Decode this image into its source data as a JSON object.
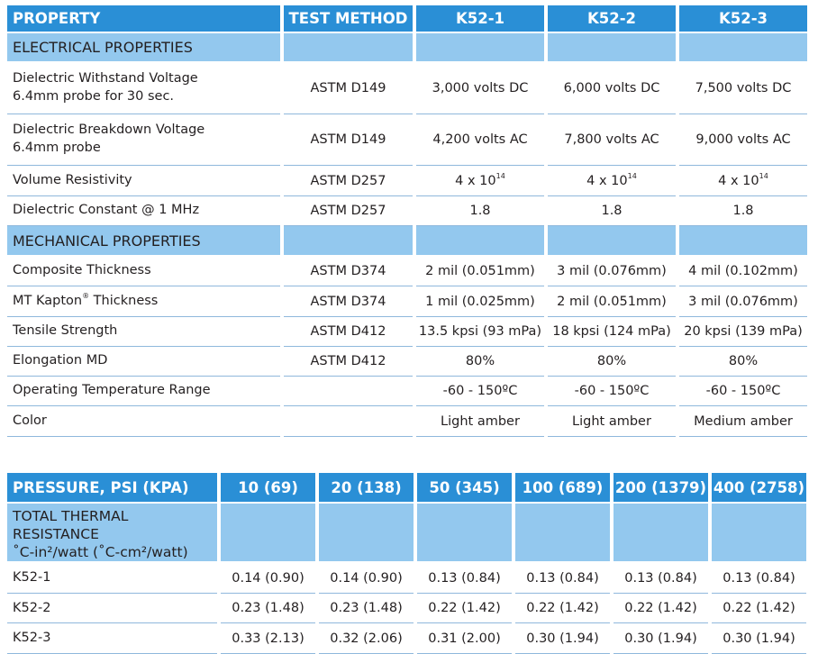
{
  "properties_table": {
    "headers": [
      "PROPERTY",
      "TEST METHOD",
      "K52-1",
      "K52-2",
      "K52-3"
    ],
    "electrical_section": "ELECTRICAL PROPERTIES",
    "mechanical_section": "MECHANICAL PROPERTIES",
    "electrical_rows": [
      {
        "line1": "Dielectric Withstand Voltage",
        "line2": "6.4mm probe for 30 sec.",
        "method": "ASTM D149",
        "v": [
          "3,000 volts DC",
          "6,000 volts DC",
          "7,500 volts DC"
        ]
      },
      {
        "line1": "Dielectric Breakdown Voltage",
        "line2": "6.4mm probe",
        "method": "ASTM D149",
        "v": [
          "4,200 volts AC",
          "7,800 volts AC",
          "9,000 volts AC"
        ]
      },
      {
        "line1": "Volume Resistivity",
        "method": "ASTM D257",
        "v": [
          "4 x 10",
          "4 x 10",
          "4 x 10"
        ],
        "exp": "14"
      },
      {
        "line1": "Dielectric Constant @ 1 MHz",
        "method": "ASTM D257",
        "v": [
          "1.8",
          "1.8",
          "1.8"
        ]
      }
    ],
    "mechanical_rows": [
      {
        "name": "Composite Thickness",
        "method": "ASTM D374",
        "v": [
          "2 mil (0.051mm)",
          "3 mil (0.076mm)",
          "4 mil (0.102mm)"
        ]
      },
      {
        "name": "MT Kapton",
        "mark": "®",
        "name_tail": " Thickness",
        "method": "ASTM D374",
        "v": [
          "1 mil (0.025mm)",
          "2 mil (0.051mm)",
          "3 mil (0.076mm)"
        ]
      },
      {
        "name": "Tensile Strength",
        "method": "ASTM D412",
        "v": [
          "13.5 kpsi (93 mPa)",
          "18 kpsi (124 mPa)",
          "20 kpsi (139 mPa)"
        ]
      },
      {
        "name": "Elongation MD",
        "method": "ASTM D412",
        "v": [
          "80%",
          "80%",
          "80%"
        ]
      },
      {
        "name": "Operating Temperature Range",
        "method": "",
        "v": [
          "-60 - 150ºC",
          "-60 - 150ºC",
          "-60 - 150ºC"
        ]
      },
      {
        "name": "Color",
        "method": "",
        "v": [
          "Light amber",
          "Light amber",
          "Medium amber"
        ]
      }
    ]
  },
  "thermal_table": {
    "headers": [
      "PRESSURE, PSI (KPA)",
      "10 (69)",
      "20 (138)",
      "50 (345)",
      "100 (689)",
      "200 (1379)",
      "400 (2758)"
    ],
    "section_line1": "TOTAL THERMAL RESISTANCE",
    "section_line2": "˚C-in²/watt (˚C-cm²/watt)",
    "rows": [
      {
        "name": "K52-1",
        "v": [
          "0.14 (0.90)",
          "0.14 (0.90)",
          "0.13 (0.84)",
          "0.13 (0.84)",
          "0.13 (0.84)",
          "0.13 (0.84)"
        ]
      },
      {
        "name": "K52-2",
        "v": [
          "0.23 (1.48)",
          "0.23 (1.48)",
          "0.22 (1.42)",
          "0.22 (1.42)",
          "0.22 (1.42)",
          "0.22 (1.42)"
        ]
      },
      {
        "name": "K52-3",
        "v": [
          "0.33 (2.13)",
          "0.32 (2.06)",
          "0.31 (2.00)",
          "0.30 (1.94)",
          "0.30 (1.94)",
          "0.30 (1.94)"
        ]
      }
    ]
  }
}
